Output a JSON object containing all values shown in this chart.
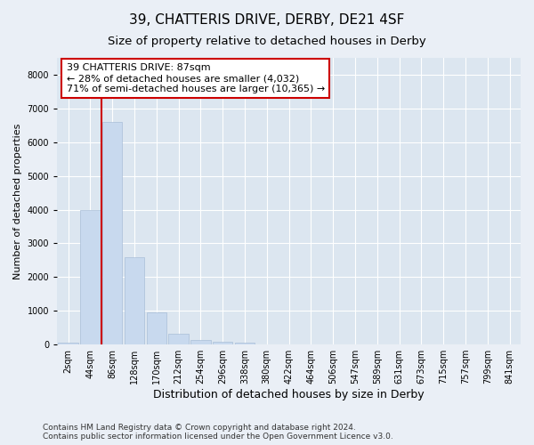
{
  "title1": "39, CHATTERIS DRIVE, DERBY, DE21 4SF",
  "title2": "Size of property relative to detached houses in Derby",
  "xlabel": "Distribution of detached houses by size in Derby",
  "ylabel": "Number of detached properties",
  "categories": [
    "2sqm",
    "44sqm",
    "86sqm",
    "128sqm",
    "170sqm",
    "212sqm",
    "254sqm",
    "296sqm",
    "338sqm",
    "380sqm",
    "422sqm",
    "464sqm",
    "506sqm",
    "547sqm",
    "589sqm",
    "631sqm",
    "673sqm",
    "715sqm",
    "757sqm",
    "799sqm",
    "841sqm"
  ],
  "values": [
    50,
    4000,
    6600,
    2600,
    950,
    330,
    130,
    80,
    50,
    0,
    0,
    0,
    0,
    0,
    0,
    0,
    0,
    0,
    0,
    0,
    0
  ],
  "bar_color": "#c8d9ee",
  "bar_edge_color": "#aabfd8",
  "property_line_color": "#cc0000",
  "property_line_x": 1.5,
  "annotation_text": "39 CHATTERIS DRIVE: 87sqm\n← 28% of detached houses are smaller (4,032)\n71% of semi-detached houses are larger (10,365) →",
  "annotation_box_color": "#ffffff",
  "annotation_box_edge_color": "#cc0000",
  "ylim": [
    0,
    8500
  ],
  "yticks": [
    0,
    1000,
    2000,
    3000,
    4000,
    5000,
    6000,
    7000,
    8000
  ],
  "bg_color": "#eaeff6",
  "plot_bg_color": "#dce6f0",
  "grid_color": "#ffffff",
  "footer": "Contains HM Land Registry data © Crown copyright and database right 2024.\nContains public sector information licensed under the Open Government Licence v3.0.",
  "title1_fontsize": 11,
  "title2_fontsize": 9.5,
  "xlabel_fontsize": 9,
  "ylabel_fontsize": 8,
  "tick_fontsize": 7,
  "annotation_fontsize": 8,
  "footer_fontsize": 6.5
}
